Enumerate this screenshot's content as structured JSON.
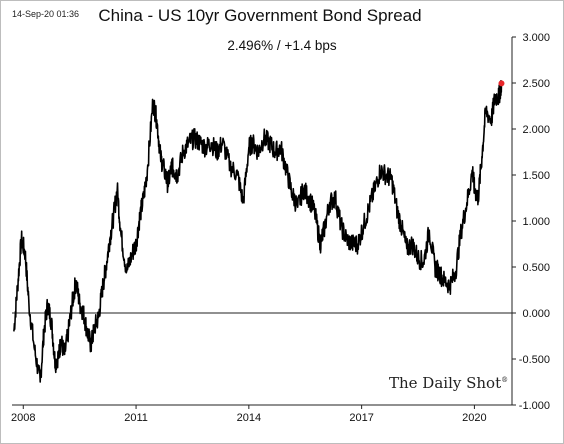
{
  "header": {
    "timestamp": "14-Sep-20 01:36",
    "title": "China - US 10yr Government Bond Spread",
    "subtitle": "2.496%  /  +1.4 bps"
  },
  "watermark": {
    "text": "The Daily Shot",
    "mark": "®"
  },
  "chart_data": {
    "type": "line",
    "title": "China - US 10yr Government Bond Spread",
    "subtitle": "2.496%  /  +1.4 bps",
    "xlim": [
      2007.7,
      2021.0
    ],
    "ylim": [
      -1.0,
      3.0
    ],
    "x_ticks": [
      2008,
      2011,
      2014,
      2017,
      2020
    ],
    "x_tick_labels": [
      "2008",
      "2011",
      "2014",
      "2017",
      "2020"
    ],
    "y_ticks": [
      3.0,
      2.5,
      2.0,
      1.5,
      1.0,
      0.5,
      0.0,
      -0.5,
      -1.0
    ],
    "y_tick_labels": [
      "3.000",
      "2.500",
      "2.000",
      "1.500",
      "1.000",
      "0.500",
      "0.000",
      "-0.500",
      "-1.000"
    ],
    "y_axis_position": "right",
    "grid": false,
    "zero_line": true,
    "line_color": "#000000",
    "last_point_color": "#e8262a",
    "series": [
      {
        "x": [
          2007.75,
          2007.85,
          2007.95,
          2008.05,
          2008.15,
          2008.3,
          2008.45,
          2008.55,
          2008.65,
          2008.75,
          2008.85,
          2008.95,
          2009.0,
          2009.1,
          2009.2,
          2009.3,
          2009.4,
          2009.5,
          2009.6,
          2009.7,
          2009.8,
          2009.9,
          2010.0,
          2010.1,
          2010.2,
          2010.3,
          2010.4,
          2010.5,
          2010.6,
          2010.75,
          2010.9,
          2011.0,
          2011.1,
          2011.2,
          2011.3,
          2011.45,
          2011.55,
          2011.65,
          2011.75,
          2011.85,
          2011.95,
          2012.0,
          2012.1,
          2012.25,
          2012.4,
          2012.55,
          2012.7,
          2012.85,
          2013.0,
          2013.15,
          2013.3,
          2013.5,
          2013.7,
          2013.85,
          2014.0,
          2014.1,
          2014.25,
          2014.4,
          2014.55,
          2014.7,
          2014.85,
          2015.0,
          2015.15,
          2015.3,
          2015.45,
          2015.6,
          2015.75,
          2015.9,
          2016.0,
          2016.15,
          2016.3,
          2016.45,
          2016.6,
          2016.75,
          2016.9,
          2017.05,
          2017.2,
          2017.35,
          2017.5,
          2017.65,
          2017.8,
          2017.95,
          2018.05,
          2018.2,
          2018.35,
          2018.5,
          2018.65,
          2018.8,
          2018.95,
          2019.05,
          2019.2,
          2019.35,
          2019.5,
          2019.65,
          2019.8,
          2019.95,
          2020.0,
          2020.1,
          2020.2,
          2020.3,
          2020.45,
          2020.55,
          2020.65,
          2020.72
        ],
        "y": [
          -0.2,
          0.3,
          0.8,
          0.65,
          0.1,
          -0.4,
          -0.75,
          -0.2,
          0.1,
          -0.1,
          -0.55,
          -0.45,
          -0.3,
          -0.45,
          -0.2,
          0.1,
          0.35,
          0.1,
          0.0,
          -0.2,
          -0.35,
          -0.15,
          -0.05,
          0.25,
          0.5,
          0.8,
          1.05,
          1.35,
          0.85,
          0.45,
          0.65,
          0.75,
          1.05,
          1.25,
          1.55,
          2.3,
          2.1,
          1.7,
          1.55,
          1.4,
          1.6,
          1.55,
          1.5,
          1.75,
          1.85,
          1.9,
          1.85,
          1.8,
          1.85,
          1.75,
          1.85,
          1.6,
          1.5,
          1.2,
          1.8,
          1.85,
          1.75,
          1.9,
          1.85,
          1.75,
          1.8,
          1.55,
          1.3,
          1.15,
          1.35,
          1.25,
          1.1,
          0.75,
          0.9,
          1.2,
          1.25,
          0.95,
          0.8,
          0.75,
          0.75,
          0.95,
          1.15,
          1.35,
          1.55,
          1.5,
          1.45,
          1.1,
          0.95,
          0.7,
          0.75,
          0.6,
          0.55,
          0.9,
          0.5,
          0.45,
          0.35,
          0.3,
          0.45,
          0.9,
          1.2,
          1.55,
          1.35,
          1.25,
          1.7,
          2.2,
          2.1,
          2.35,
          2.35,
          2.496
        ]
      }
    ]
  }
}
